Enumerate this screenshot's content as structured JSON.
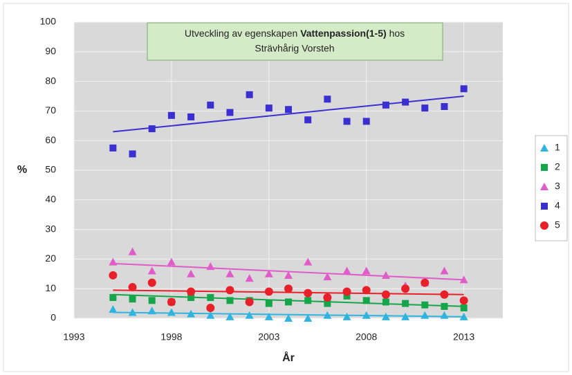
{
  "chart_data": {
    "type": "scatter",
    "title": {
      "prefix": "Utveckling av egenskapen",
      "bold": "Vattenpassion(1-5)",
      "suffix": "hos",
      "line2": "Strävhårig Vorsteh"
    },
    "xlabel": "År",
    "ylabel": "%",
    "x": [
      1995,
      1996,
      1997,
      1998,
      1999,
      2000,
      2001,
      2002,
      2003,
      2004,
      2005,
      2006,
      2007,
      2008,
      2009,
      2010,
      2011,
      2012,
      2013
    ],
    "xlim": [
      1993,
      2015
    ],
    "xticks": [
      1993,
      1998,
      2003,
      2008,
      2013
    ],
    "ylim": [
      0,
      100
    ],
    "yticks": [
      0,
      10,
      20,
      30,
      40,
      50,
      60,
      70,
      80,
      90,
      100
    ],
    "grid": true,
    "legend": "right",
    "series": [
      {
        "name": "1",
        "color": "#2fb4e0",
        "marker": "triangle",
        "values": [
          3,
          2,
          2.5,
          2,
          1.5,
          1,
          0.5,
          1,
          0.5,
          0,
          0,
          1,
          0.5,
          1,
          0.5,
          0.5,
          1,
          1,
          0.5
        ],
        "trend": [
          2,
          0.5
        ]
      },
      {
        "name": "2",
        "color": "#16a64a",
        "marker": "square",
        "values": [
          7,
          6.5,
          6,
          5.5,
          7,
          7,
          6,
          6,
          5,
          5.5,
          6,
          5,
          7.5,
          6,
          5.5,
          5,
          4.5,
          4,
          3.5
        ],
        "trend": [
          8,
          4
        ]
      },
      {
        "name": "3",
        "color": "#e05cc8",
        "marker": "triangle",
        "values": [
          19,
          22.5,
          16,
          19,
          15,
          17.5,
          15,
          13.5,
          15,
          14.5,
          19,
          14,
          16,
          16,
          14.5,
          11,
          12,
          16,
          13
        ],
        "trend": [
          18.5,
          13
        ]
      },
      {
        "name": "4",
        "color": "#3a2fd0",
        "marker": "square",
        "values": [
          57.5,
          55.5,
          64,
          68.5,
          68,
          72,
          69.5,
          75.5,
          71,
          70.5,
          67,
          74,
          66.5,
          66.5,
          72,
          73,
          71,
          71.5,
          77.5
        ],
        "trend": [
          63,
          75
        ]
      },
      {
        "name": "5",
        "color": "#e8202a",
        "marker": "circle",
        "values": [
          14.5,
          10.5,
          12,
          5.5,
          9,
          3.5,
          9.5,
          5.5,
          9,
          10,
          8.5,
          7,
          9,
          9.5,
          8,
          10,
          12,
          8,
          6
        ],
        "trend": [
          9.5,
          8
        ]
      }
    ]
  }
}
